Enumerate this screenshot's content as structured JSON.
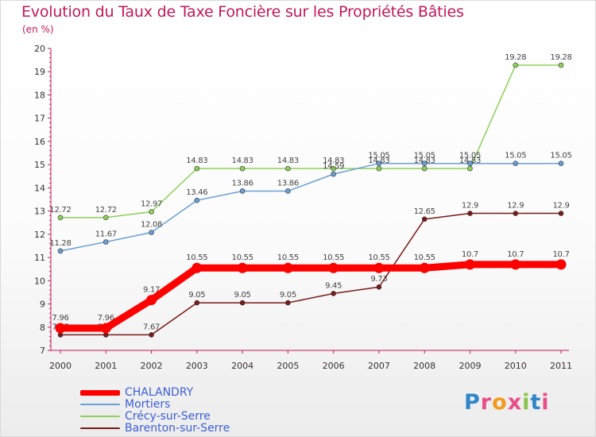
{
  "chart_data": {
    "type": "line",
    "title": "Evolution du Taux de Taxe Foncière sur les Propriétés Bâties",
    "subtitle": "(en %)",
    "xlabel": "",
    "ylabel": "(en %)",
    "ylim": [
      7,
      20
    ],
    "y_ticks": [
      "7",
      "8",
      "9",
      "10",
      "11",
      "12",
      "13",
      "14",
      "15",
      "16",
      "17",
      "18",
      "19",
      "20"
    ],
    "categories": [
      "2000",
      "2001",
      "2002",
      "2003",
      "2004",
      "2005",
      "2006",
      "2007",
      "2008",
      "2009",
      "2010",
      "2011"
    ],
    "grid": false,
    "legend_position": "bottom-left",
    "series": [
      {
        "name": "CHALANDRY",
        "color": "#ff0000",
        "values": [
          7.96,
          7.96,
          9.17,
          10.55,
          10.55,
          10.55,
          10.55,
          10.55,
          10.55,
          10.7,
          10.7,
          10.7
        ],
        "labels": [
          "7.96",
          "7.96",
          "9.17",
          "10.55",
          "10.55",
          "10.55",
          "10.55",
          "10.55",
          "10.55",
          "10.7",
          "10.7",
          "10.7"
        ]
      },
      {
        "name": "Mortiers",
        "color": "#6a9fd4",
        "values": [
          11.28,
          11.67,
          12.08,
          13.46,
          13.86,
          13.86,
          14.59,
          15.05,
          15.05,
          15.05,
          15.05,
          15.05
        ],
        "labels": [
          "11.28",
          "11.67",
          "12.08",
          "13.46",
          "13.86",
          "13.86",
          "14.59",
          "15.05",
          "15.05",
          "15.05",
          "15.05",
          "15.05"
        ]
      },
      {
        "name": "Crécy-sur-Serre",
        "color": "#8ed05a",
        "values": [
          12.72,
          12.72,
          12.97,
          14.83,
          14.83,
          14.83,
          14.83,
          14.83,
          14.83,
          14.83,
          19.28,
          19.28
        ],
        "labels": [
          "12.72",
          "12.72",
          "12.97",
          "14.83",
          "14.83",
          "14.83",
          "14.83",
          "14.83",
          "14.83",
          "14.83",
          "19.28",
          "19.28"
        ]
      },
      {
        "name": "Barenton-sur-Serre",
        "color": "#7a1a1a",
        "values": [
          7.67,
          7.67,
          7.67,
          9.05,
          9.05,
          9.05,
          9.45,
          9.73,
          12.65,
          12.9,
          12.9,
          12.9
        ],
        "labels": [
          "7.67",
          "7.67",
          "7.67",
          "9.05",
          "9.05",
          "9.05",
          "9.45",
          "9.73",
          "12.65",
          "12.9",
          "12.9",
          "12.9"
        ]
      }
    ]
  },
  "brand": {
    "text": "Proxiti",
    "letters": [
      "P",
      "r",
      "o",
      "x",
      "i",
      "t",
      "i"
    ],
    "colors": [
      "#2f86c8",
      "#e84e8a",
      "#f29a1f",
      "#e84e8a",
      "#8bc34a",
      "#2f86c8",
      "#e84e8a"
    ]
  }
}
